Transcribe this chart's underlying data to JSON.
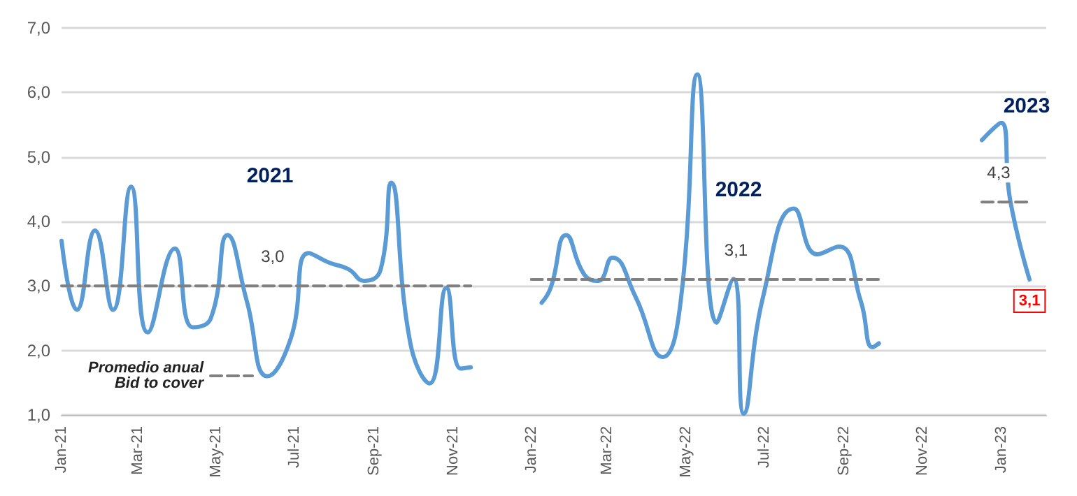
{
  "chart_data": {
    "type": "line",
    "xlim": [
      "2021-01-01",
      "2023-02-05"
    ],
    "xticks": [
      {
        "value": "2021-01-01",
        "label": "Jan-21"
      },
      {
        "value": "2021-03-01",
        "label": "Mar-21"
      },
      {
        "value": "2021-05-01",
        "label": "May-21"
      },
      {
        "value": "2021-07-01",
        "label": "Jul-21"
      },
      {
        "value": "2021-09-01",
        "label": "Sep-21"
      },
      {
        "value": "2021-11-01",
        "label": "Nov-21"
      },
      {
        "value": "2022-01-01",
        "label": "Jan-22"
      },
      {
        "value": "2022-03-01",
        "label": "Mar-22"
      },
      {
        "value": "2022-05-01",
        "label": "May-22"
      },
      {
        "value": "2022-07-01",
        "label": "Jul-22"
      },
      {
        "value": "2022-09-01",
        "label": "Sep-22"
      },
      {
        "value": "2022-11-01",
        "label": "Nov-22"
      },
      {
        "value": "2023-01-01",
        "label": "Jan-23"
      }
    ],
    "ylim": [
      1,
      7
    ],
    "yticks": [
      {
        "value": 1,
        "label": "1,0"
      },
      {
        "value": 2,
        "label": "2,0"
      },
      {
        "value": 3,
        "label": "3,0"
      },
      {
        "value": 4,
        "label": "4,0"
      },
      {
        "value": 5,
        "label": "5,0"
      },
      {
        "value": 6,
        "label": "6,0"
      },
      {
        "value": 7,
        "label": "7,0"
      }
    ],
    "grid": "y",
    "legend": "bottom left",
    "marker": "none",
    "series": [
      {
        "color": "#5b9bd5",
        "line_style": "solid",
        "x": [
          "2021-01-01",
          "2021-01-13",
          "2021-01-27",
          "2021-02-10",
          "2021-02-24",
          "2021-03-09",
          "2021-03-30",
          "2021-04-13",
          "2021-04-27",
          "2021-05-10",
          "2021-05-25",
          "2021-06-10",
          "2021-06-28",
          "2021-07-12",
          "2021-07-28",
          "2021-08-12",
          "2021-08-24",
          "2021-09-06",
          "2021-09-14",
          "2021-09-29",
          "2021-10-14",
          "2021-10-27",
          "2021-11-07",
          "2021-11-15",
          "2021-12-15",
          "2022-01-09",
          "2022-01-16",
          "2022-01-28",
          "2022-02-11",
          "2022-02-22",
          "2022-03-05",
          "2022-03-23",
          "2022-04-13",
          "2022-04-27",
          "2022-05-10",
          "2022-05-25",
          "2022-06-07",
          "2022-06-15",
          "2022-06-30",
          "2022-07-24",
          "2022-08-11",
          "2022-08-28",
          "2022-09-14",
          "2022-09-23",
          "2022-09-28",
          "2022-11-15",
          "2022-12-17",
          "2023-01-01",
          "2023-01-08",
          "2023-01-23"
        ],
        "values": [
          3.7,
          2.63,
          3.86,
          2.63,
          4.54,
          2.28,
          3.58,
          2.36,
          2.5,
          3.79,
          2.76,
          1.6,
          2.18,
          3.51,
          3.36,
          3.26,
          3.08,
          3.26,
          4.6,
          2.11,
          1.49,
          2.97,
          1.72,
          1.74,
          null,
          2.74,
          2.97,
          3.79,
          3.18,
          3.08,
          3.44,
          2.83,
          1.9,
          2.76,
          6.28,
          2.43,
          3.11,
          1.02,
          2.83,
          4.2,
          3.49,
          3.61,
          2.76,
          2.05,
          2.11,
          null,
          5.26,
          5.53,
          4.33,
          3.1
        ],
        "value_labels": [
          null,
          null,
          null,
          null,
          null,
          null,
          null,
          null,
          null,
          null,
          null,
          null,
          null,
          null,
          null,
          null,
          null,
          null,
          null,
          null,
          null,
          null,
          null,
          null,
          null,
          null,
          null,
          null,
          null,
          null,
          null,
          null,
          null,
          null,
          null,
          null,
          null,
          null,
          null,
          null,
          null,
          null,
          null,
          null,
          null,
          null,
          null,
          null,
          null,
          "3,1"
        ]
      },
      {
        "name": "Promedio anual\nBid to cover",
        "color": "#808080",
        "line_style": "dashed",
        "x": [
          "2021-01-01",
          "2021-06-01",
          "2021-11-15",
          "2021-12-15",
          "2022-01-01",
          "2022-05-27",
          "2022-09-28",
          "2022-11-15",
          "2022-12-17",
          "2022-12-20",
          "2023-01-23"
        ],
        "values": [
          3.0,
          3.0,
          3.0,
          null,
          3.1,
          3.1,
          3.1,
          null,
          4.3,
          4.3,
          4.3
        ],
        "value_labels": [
          null,
          "3,0",
          null,
          null,
          null,
          "3,1",
          null,
          null,
          "4,3",
          null,
          null
        ]
      }
    ],
    "annotations": [
      "2021",
      "2022",
      "2023"
    ]
  }
}
